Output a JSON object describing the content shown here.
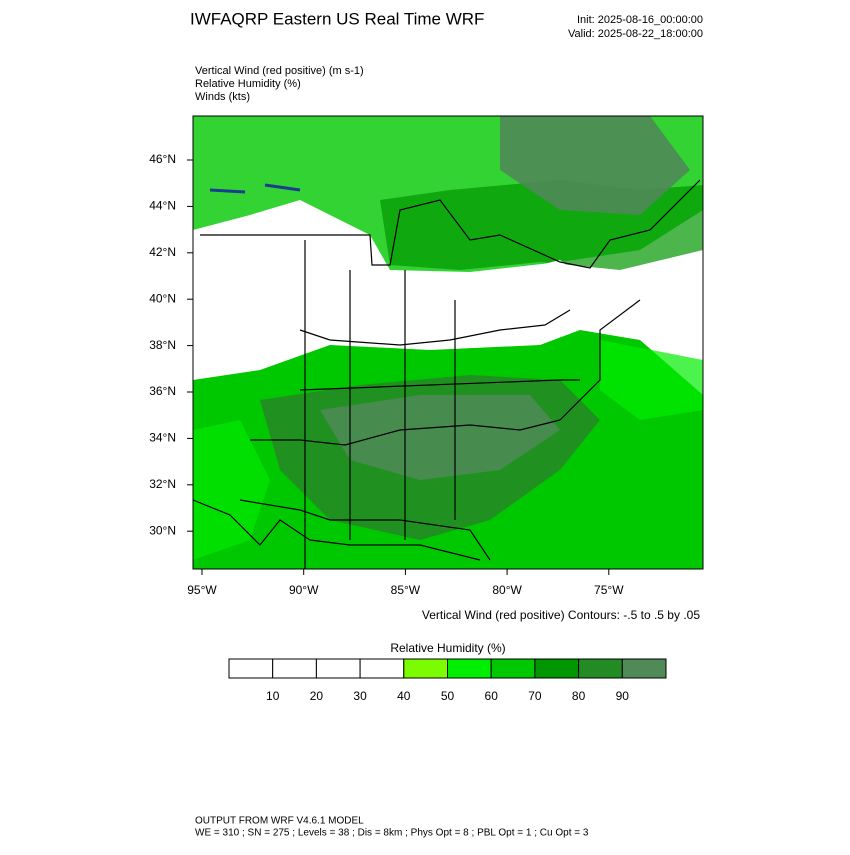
{
  "header": {
    "title": "IWFAQRP Eastern US Real Time WRF",
    "init": "Init: 2025-08-16_00:00:00",
    "valid": "Valid: 2025-08-22_18:00:00"
  },
  "fields": [
    "Vertical Wind (red positive)   (m s-1)",
    "Relative Humidity   (%)",
    "Winds   (kts)"
  ],
  "map": {
    "lat_labels": [
      "46°N",
      "44°N",
      "42°N",
      "40°N",
      "38°N",
      "36°N",
      "34°N",
      "32°N",
      "30°N"
    ],
    "lon_labels": [
      "95°W",
      "90°W",
      "85°W",
      "80°W",
      "75°W"
    ],
    "contour_note": "Vertical Wind (red positive) Contours: -.5 to .5 by .05"
  },
  "colorbar": {
    "title": "Relative Humidity  (%)",
    "colors": [
      "#ffffff",
      "#ffffff",
      "#ffffff",
      "#ffffff",
      "#7cfc00",
      "#00ee00",
      "#00c800",
      "#009600",
      "#238b23",
      "#4f8a57"
    ],
    "labels": [
      10,
      20,
      30,
      40,
      50,
      60,
      70,
      80,
      90
    ]
  },
  "footer": {
    "line1": "OUTPUT FROM WRF V4.6.1 MODEL",
    "line2": "WE = 310 ; SN = 275 ; Levels = 38 ; Dis = 8km ; Phys Opt = 8 ; PBL Opt = 1 ; Cu Opt = 3"
  }
}
